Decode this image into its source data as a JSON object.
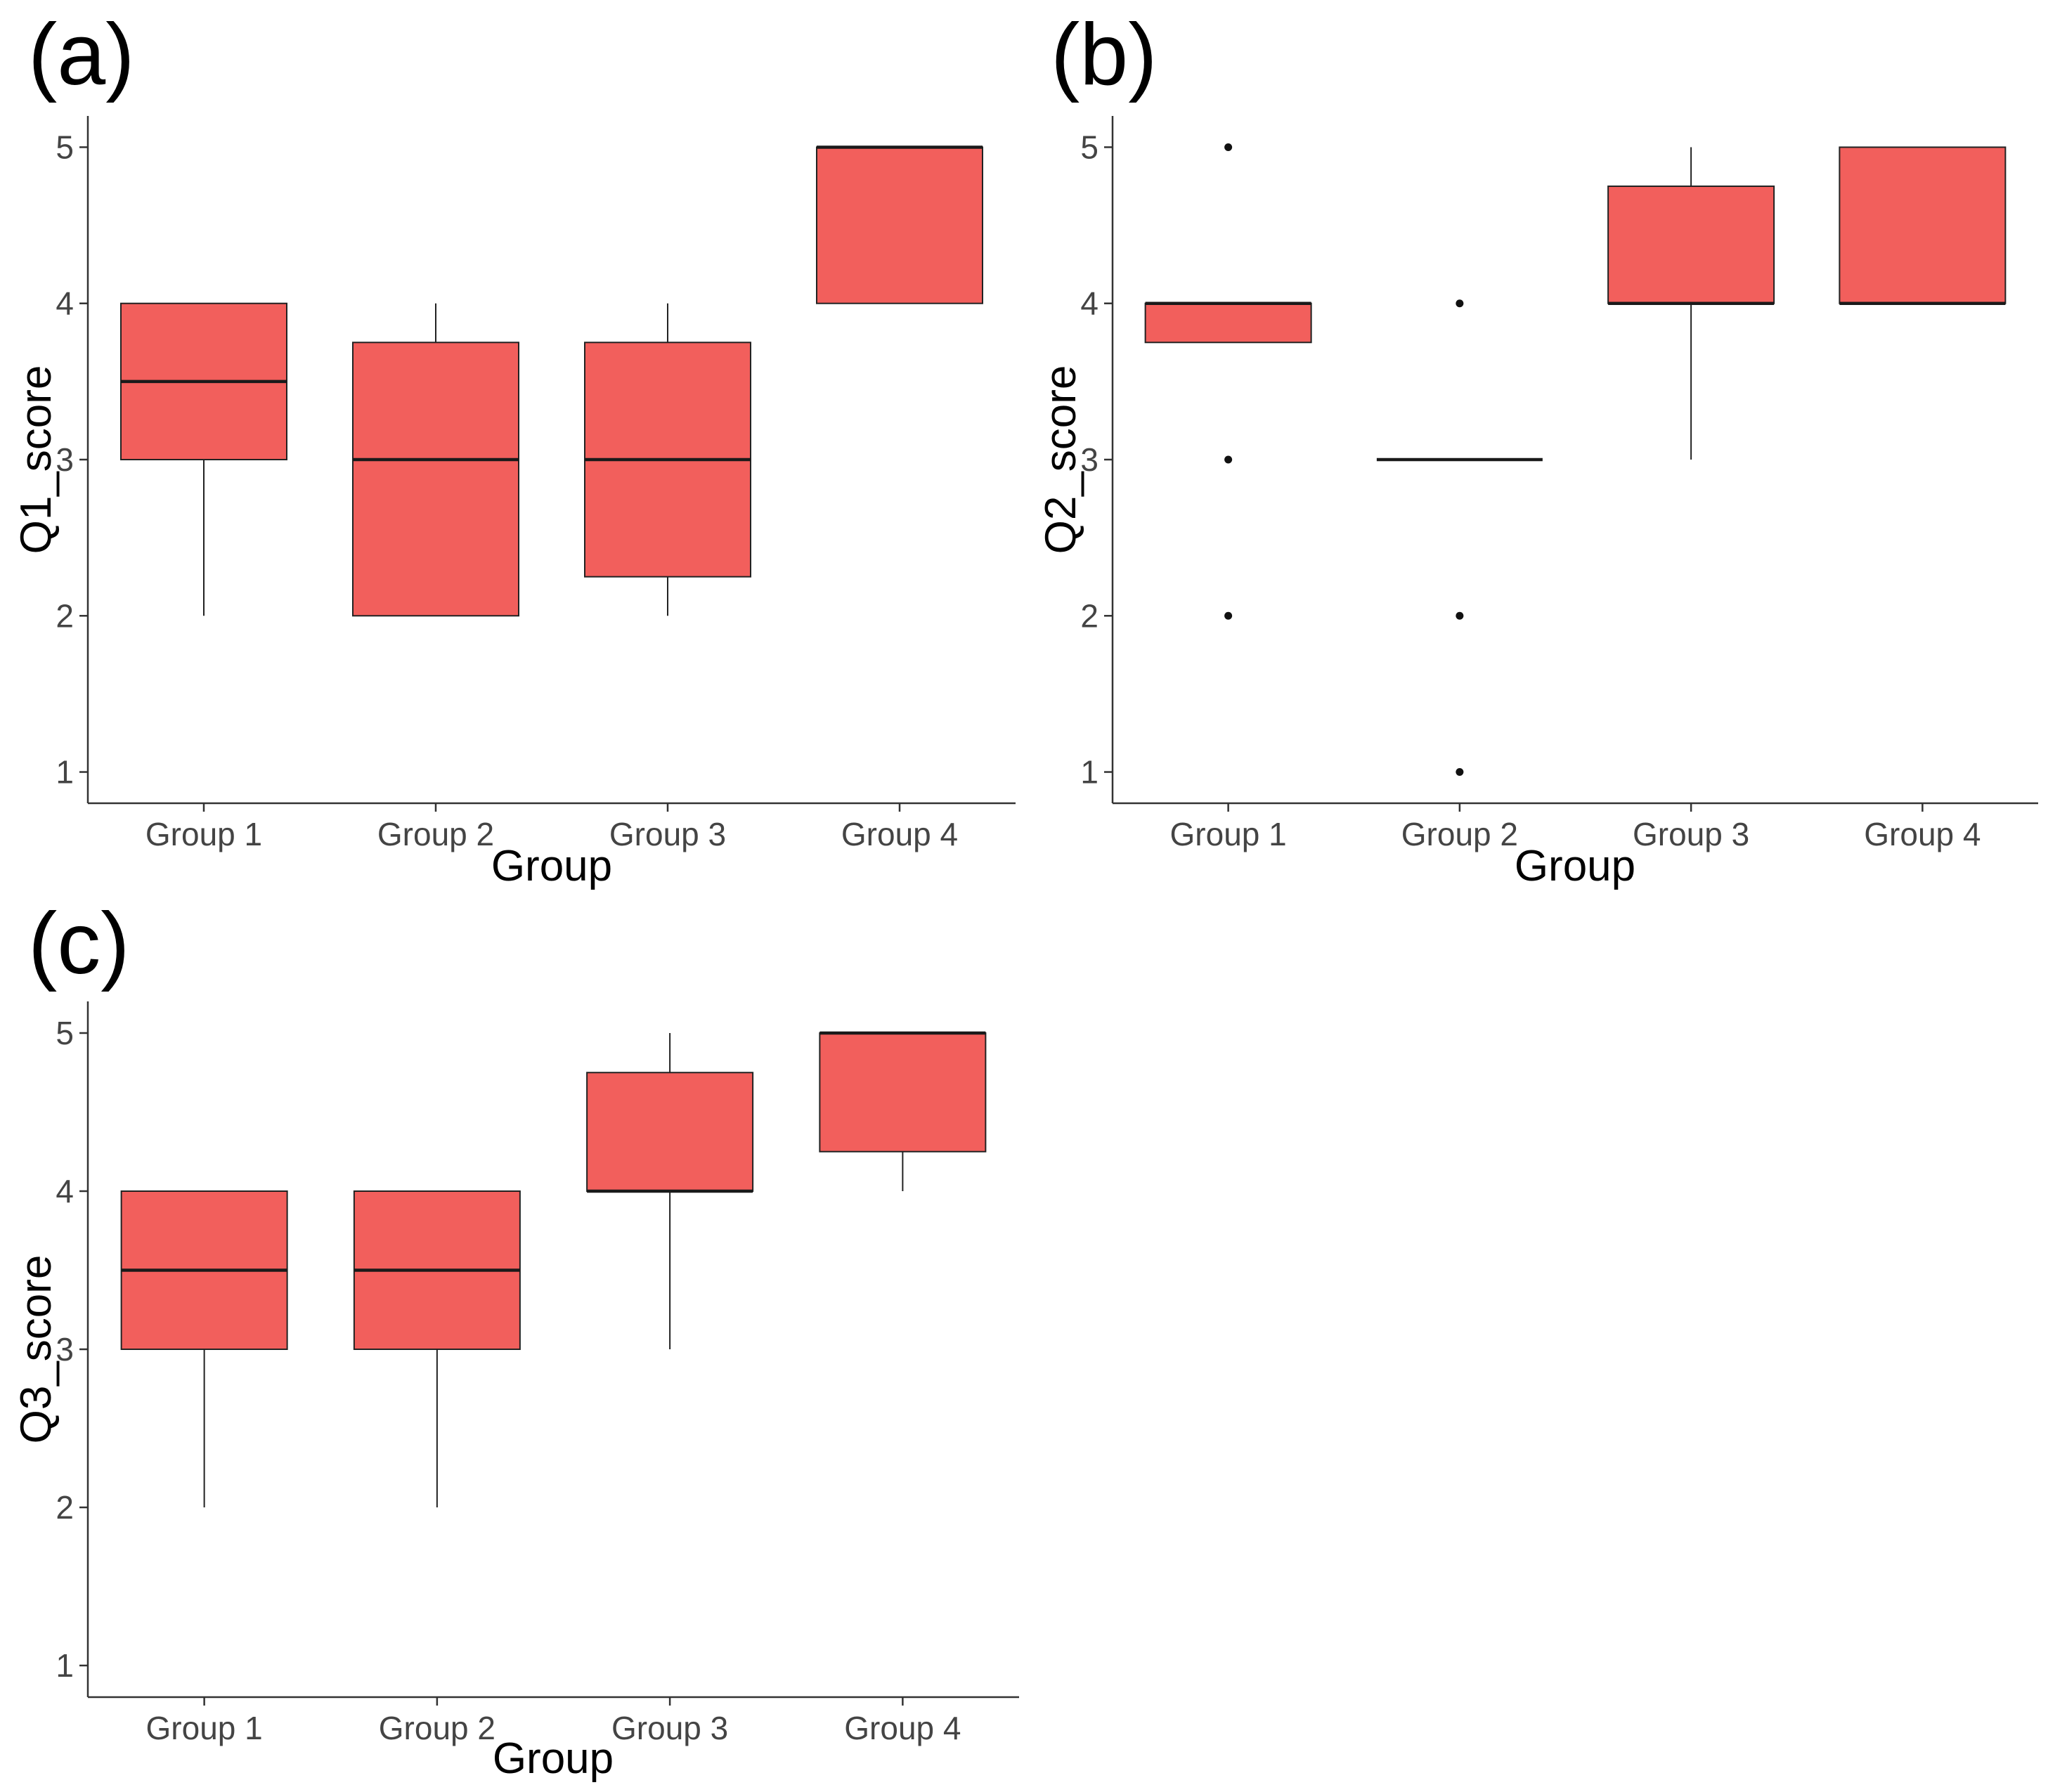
{
  "chart_data": [
    {
      "type": "boxplot",
      "panel_label": "(a)",
      "xlabel": "Group",
      "ylabel": "Q1_score",
      "ylim": [
        0.8,
        5.2
      ],
      "yticks": [
        "1",
        "2",
        "3",
        "4",
        "5"
      ],
      "categories": [
        "Group 1",
        "Group 2",
        "Group 3",
        "Group 4"
      ],
      "fill": "#f25f5c",
      "boxes": [
        {
          "min": 2,
          "q1": 3,
          "median": 3.5,
          "q3": 4,
          "max": 4,
          "outliers": []
        },
        {
          "min": 2,
          "q1": 2,
          "median": 3,
          "q3": 3.75,
          "max": 4,
          "outliers": []
        },
        {
          "min": 2,
          "q1": 2.25,
          "median": 3,
          "q3": 3.75,
          "max": 4,
          "outliers": []
        },
        {
          "min": 4,
          "q1": 4,
          "median": 5,
          "q3": 5,
          "max": 5,
          "outliers": []
        }
      ]
    },
    {
      "type": "boxplot",
      "panel_label": "(b)",
      "xlabel": "Group",
      "ylabel": "Q2_score",
      "ylim": [
        0.8,
        5.2
      ],
      "yticks": [
        "1",
        "2",
        "3",
        "4",
        "5"
      ],
      "categories": [
        "Group 1",
        "Group 2",
        "Group 3",
        "Group 4"
      ],
      "fill": "#f25f5c",
      "boxes": [
        {
          "min": 3.75,
          "q1": 3.75,
          "median": 4,
          "q3": 4,
          "max": 4,
          "outliers": [
            5,
            3,
            2
          ]
        },
        {
          "min": 3,
          "q1": 3,
          "median": 3,
          "q3": 3,
          "max": 3,
          "outliers": [
            4,
            2,
            1
          ]
        },
        {
          "min": 3,
          "q1": 4,
          "median": 4,
          "q3": 4.75,
          "max": 5,
          "outliers": []
        },
        {
          "min": 4,
          "q1": 4,
          "median": 4,
          "q3": 5,
          "max": 5,
          "outliers": []
        }
      ]
    },
    {
      "type": "boxplot",
      "panel_label": "(c)",
      "xlabel": "Group",
      "ylabel": "Q3_score",
      "ylim": [
        0.8,
        5.2
      ],
      "yticks": [
        "1",
        "2",
        "3",
        "4",
        "5"
      ],
      "categories": [
        "Group 1",
        "Group 2",
        "Group 3",
        "Group 4"
      ],
      "fill": "#f25f5c",
      "boxes": [
        {
          "min": 2,
          "q1": 3,
          "median": 3.5,
          "q3": 4,
          "max": 4,
          "outliers": []
        },
        {
          "min": 2,
          "q1": 3,
          "median": 3.5,
          "q3": 4,
          "max": 4,
          "outliers": []
        },
        {
          "min": 3,
          "q1": 4,
          "median": 4,
          "q3": 4.75,
          "max": 5,
          "outliers": []
        },
        {
          "min": 4,
          "q1": 4.25,
          "median": 5,
          "q3": 5,
          "max": 5,
          "outliers": []
        }
      ]
    }
  ]
}
